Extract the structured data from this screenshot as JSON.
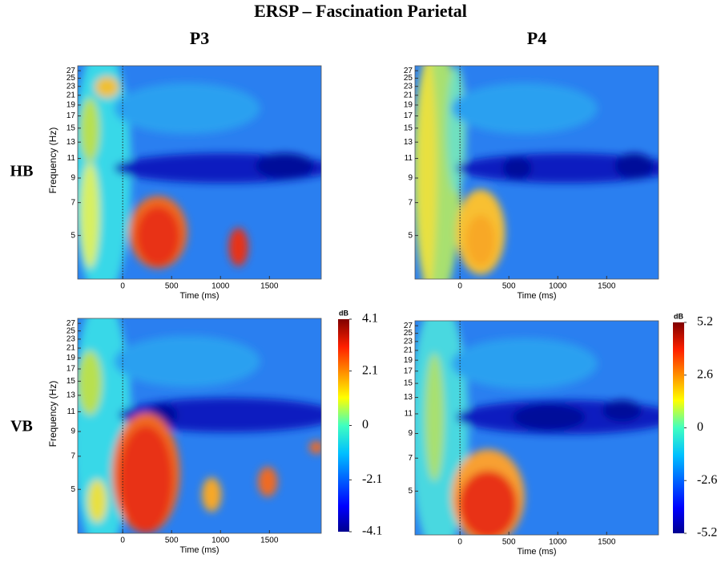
{
  "figure": {
    "title": "ERSP – Fascination Parietal",
    "columns": [
      "P3",
      "P4"
    ],
    "rows": [
      "HB",
      "VB"
    ]
  },
  "chart_data": [
    {
      "type": "heatmap",
      "xlabel": "Time (ms)",
      "ylabel": "Frequency (Hz)",
      "xlim": [
        -460,
        2030
      ],
      "xticks": [
        0,
        500,
        1000,
        1500
      ],
      "ylim": [
        3.2,
        28.4
      ],
      "log_y": true,
      "yticks": [
        5,
        7,
        9,
        11,
        13,
        15,
        17,
        19,
        21,
        23,
        25,
        27
      ]
    },
    {
      "type": "heatmap",
      "xlabel": "Time (ms)",
      "xlim": [
        -460,
        2030
      ],
      "xticks": [
        0,
        500,
        1000,
        1500
      ],
      "ylim": [
        3.2,
        28.4
      ],
      "log_y": true,
      "yticks": [
        5,
        7,
        9,
        11,
        13,
        15,
        17,
        19,
        21,
        23,
        25,
        27
      ]
    },
    {
      "type": "heatmap",
      "xlabel": "Time (ms)",
      "ylabel": "Frequency (Hz)",
      "xlim": [
        -460,
        2030
      ],
      "xticks": [
        0,
        500,
        1000,
        1500
      ],
      "ylim": [
        3.2,
        28.4
      ],
      "log_y": true,
      "yticks": [
        5,
        7,
        9,
        11,
        13,
        15,
        17,
        19,
        21,
        23,
        25,
        27
      ],
      "colorbar": {
        "label": "dB",
        "lim": [
          -4.1,
          4.1
        ],
        "ticks": [
          4.1,
          2.1,
          0,
          -2.1,
          -4.1
        ]
      }
    },
    {
      "type": "heatmap",
      "xlabel": "Time (ms)",
      "xlim": [
        -460,
        2030
      ],
      "xticks": [
        0,
        500,
        1000,
        1500
      ],
      "ylim": [
        3.2,
        28.4
      ],
      "log_y": true,
      "yticks": [
        5,
        7,
        9,
        11,
        13,
        15,
        17,
        19,
        21,
        23,
        25,
        27
      ],
      "colorbar": {
        "label": "dB",
        "lim": [
          -5.2,
          5.2
        ],
        "ticks": [
          5.2,
          2.6,
          0,
          -2.6,
          -5.2
        ]
      }
    }
  ]
}
